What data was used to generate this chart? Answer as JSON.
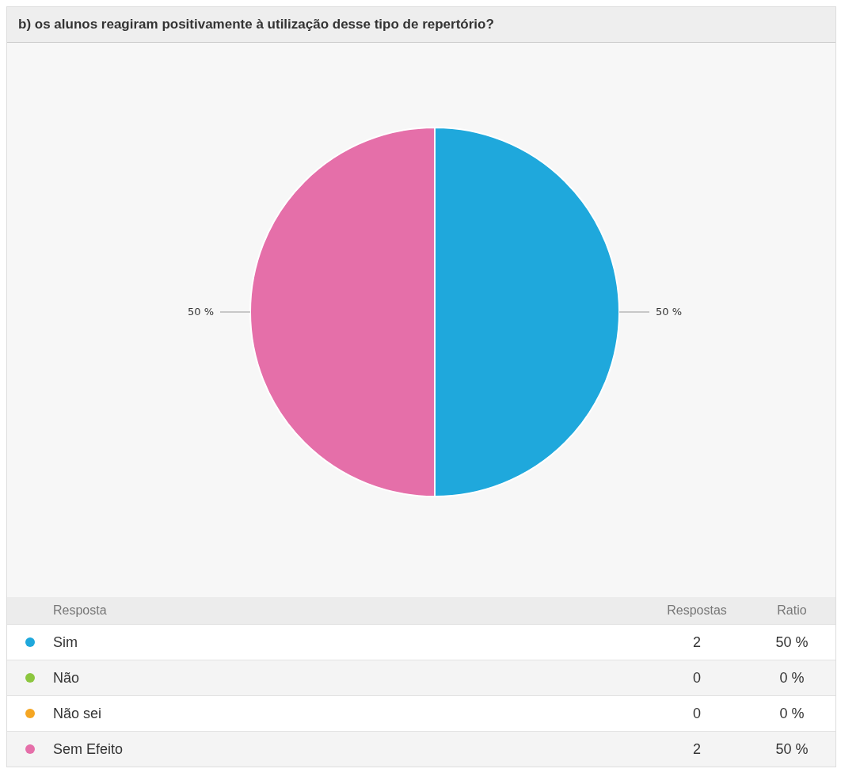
{
  "chart_data": {
    "type": "pie",
    "title": "b) os alunos reagiram positivamente à utilização desse tipo de repertório?",
    "categories": [
      "Sim",
      "Não",
      "Não sei",
      "Sem Efeito"
    ],
    "values": [
      50,
      0,
      0,
      50
    ],
    "colors": [
      "#1fa8dc",
      "#8cc63f",
      "#f5a623",
      "#e56fa9"
    ],
    "value_labels": [
      "50 %",
      "0 %",
      "0 %",
      "50 %"
    ],
    "annotations": [
      "Resposta",
      "Respostas",
      "Ratio",
      {
        "text": "2",
        "x": "Sim"
      },
      {
        "text": "0",
        "x": "Não"
      },
      {
        "text": "0",
        "x": "Não sei"
      },
      {
        "text": "2",
        "x": "Sem Efeito"
      }
    ],
    "legend": "bottom"
  }
}
